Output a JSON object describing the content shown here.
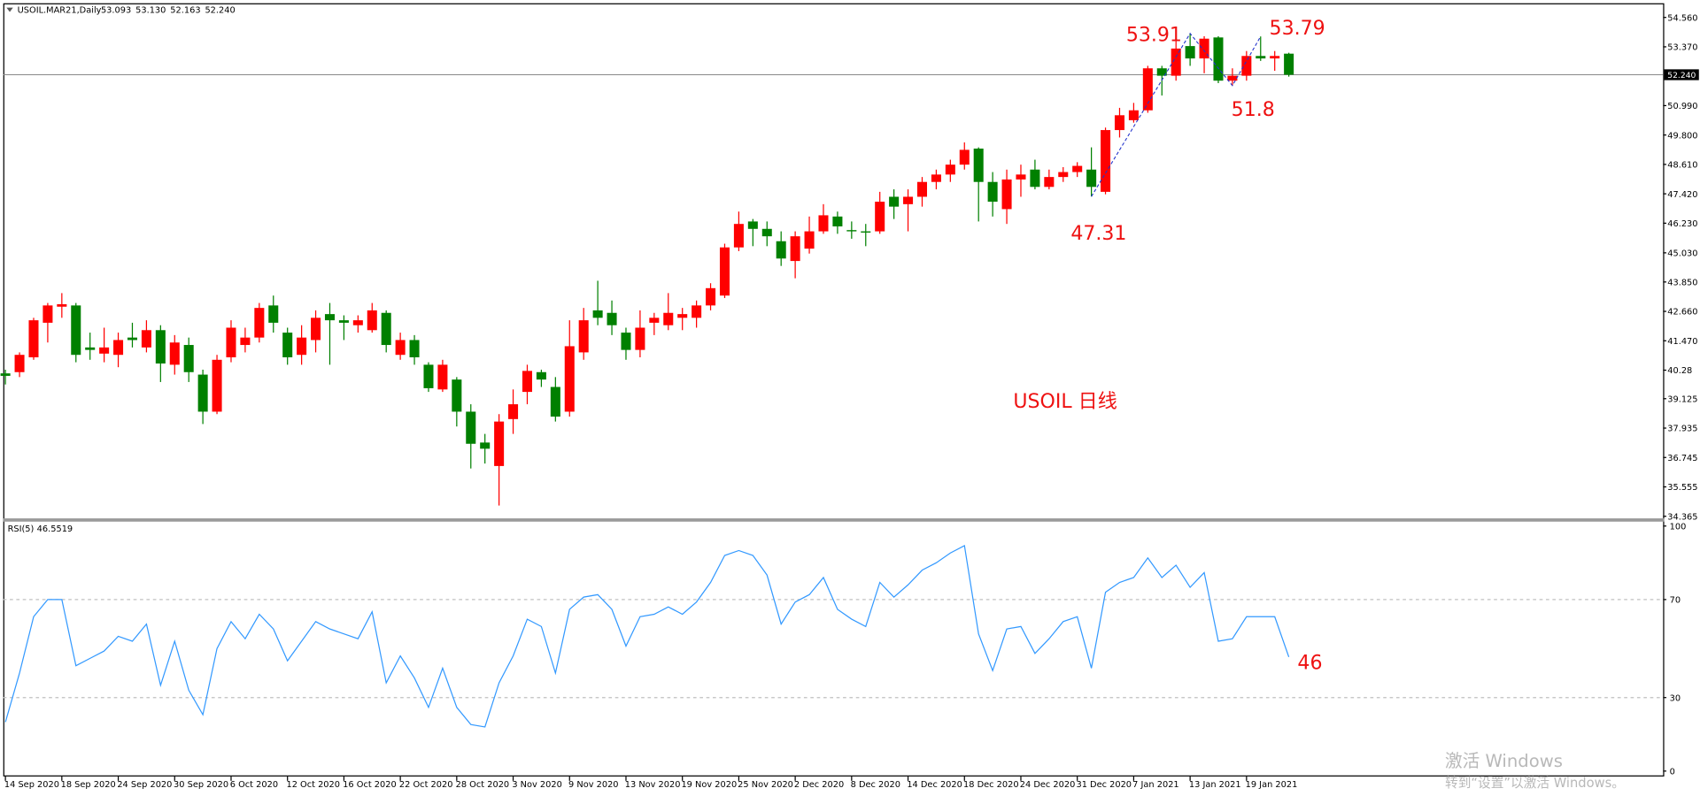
{
  "chart_data": {
    "type": "candlestick",
    "symbol": "USOIL.MAR21,Daily",
    "ohlc_labels": [
      "53.093",
      "53.130",
      "52.163",
      "52.240"
    ],
    "categories": [
      "14 Sep 2020",
      null,
      null,
      null,
      "18 Sep 2020",
      null,
      null,
      null,
      "24 Sep 2020",
      null,
      null,
      null,
      "30 Sep 2020",
      null,
      null,
      null,
      "6 Oct 2020",
      null,
      null,
      null,
      "12 Oct 2020",
      null,
      null,
      null,
      "16 Oct 2020",
      null,
      null,
      null,
      "22 Oct 2020",
      null,
      null,
      null,
      "28 Oct 2020",
      null,
      null,
      null,
      "3 Nov 2020",
      null,
      null,
      null,
      "9 Nov 2020",
      null,
      null,
      null,
      "13 Nov 2020",
      null,
      null,
      null,
      "19 Nov 2020",
      null,
      null,
      null,
      "25 Nov 2020",
      null,
      null,
      null,
      "2 Dec 2020",
      null,
      null,
      null,
      "8 Dec 2020",
      null,
      null,
      null,
      "14 Dec 2020",
      null,
      null,
      null,
      "18 Dec 2020",
      null,
      null,
      null,
      "24 Dec 2020",
      null,
      null,
      null,
      "31 Dec 2020",
      null,
      null,
      null,
      "7 Jan 2021",
      null,
      null,
      null,
      "13 Jan 2021",
      null,
      null,
      null,
      "19 Jan 2021",
      null,
      null,
      null
    ],
    "open": [
      40.15,
      40.2,
      40.8,
      42.2,
      42.85,
      42.9,
      41.2,
      40.95,
      40.9,
      41.6,
      41.2,
      41.9,
      40.5,
      41.3,
      40.1,
      38.6,
      40.8,
      41.3,
      41.6,
      42.9,
      41.8,
      40.9,
      41.5,
      42.55,
      42.3,
      42.1,
      41.9,
      42.6,
      40.9,
      41.5,
      40.5,
      39.5,
      39.9,
      38.6,
      37.35,
      36.4,
      38.3,
      39.4,
      40.2,
      39.6,
      38.6,
      41.0,
      42.7,
      42.6,
      41.8,
      41.1,
      42.2,
      42.1,
      42.4,
      42.4,
      42.9,
      43.3,
      45.25,
      46.3,
      46.0,
      45.5,
      44.7,
      45.2,
      45.9,
      46.5,
      45.95,
      45.9,
      45.9,
      47.3,
      47.0,
      47.3,
      47.9,
      48.2,
      48.6,
      49.25,
      47.9,
      46.8,
      48.0,
      48.4,
      47.7,
      48.1,
      48.3,
      48.4,
      47.5,
      50.0,
      50.4,
      50.8,
      52.5,
      52.2,
      53.4,
      52.9,
      53.75,
      52.0,
      52.2,
      53.0,
      52.9,
      53.093
    ],
    "high": [
      40.3,
      41.0,
      42.4,
      43.0,
      43.4,
      43.0,
      41.8,
      42.0,
      41.8,
      42.2,
      42.3,
      42.1,
      41.7,
      41.6,
      40.3,
      40.9,
      42.3,
      42.0,
      43.0,
      43.3,
      42.0,
      42.1,
      42.7,
      43.0,
      42.5,
      42.5,
      43.0,
      42.7,
      41.8,
      41.7,
      40.6,
      40.7,
      40.0,
      38.9,
      37.7,
      38.5,
      39.5,
      40.5,
      40.3,
      40.0,
      42.3,
      42.8,
      43.9,
      43.1,
      42.0,
      42.7,
      42.6,
      43.4,
      42.8,
      43.1,
      43.8,
      45.4,
      46.7,
      46.4,
      46.3,
      45.9,
      45.9,
      46.5,
      47.0,
      46.7,
      46.3,
      46.2,
      47.5,
      47.6,
      47.6,
      48.1,
      48.4,
      48.8,
      49.5,
      49.3,
      48.3,
      48.4,
      48.6,
      48.8,
      48.4,
      48.5,
      48.7,
      49.3,
      50.1,
      50.9,
      51.1,
      52.6,
      52.6,
      53.7,
      53.91,
      53.8,
      53.8,
      52.5,
      53.2,
      53.79,
      53.2,
      53.13
    ],
    "low": [
      39.7,
      40.0,
      40.7,
      41.4,
      42.4,
      40.6,
      40.7,
      40.6,
      40.4,
      41.2,
      41.0,
      39.8,
      40.1,
      39.8,
      38.1,
      38.5,
      40.6,
      41.0,
      41.4,
      41.8,
      40.5,
      40.5,
      41.0,
      40.5,
      41.5,
      41.8,
      41.8,
      41.0,
      40.7,
      40.5,
      39.4,
      39.4,
      38.0,
      36.3,
      36.5,
      34.8,
      37.7,
      38.9,
      39.6,
      38.2,
      38.4,
      40.7,
      42.1,
      41.7,
      40.7,
      40.8,
      41.7,
      41.9,
      41.9,
      42.0,
      42.7,
      43.2,
      45.1,
      45.3,
      45.3,
      44.5,
      44.0,
      45.0,
      45.8,
      45.8,
      45.6,
      45.3,
      45.8,
      46.4,
      45.9,
      46.9,
      47.6,
      47.9,
      48.4,
      46.3,
      46.5,
      46.2,
      47.3,
      47.6,
      47.6,
      47.9,
      48.1,
      47.31,
      47.4,
      49.7,
      50.3,
      50.7,
      51.4,
      52.0,
      52.6,
      52.3,
      51.9,
      51.8,
      52.0,
      52.8,
      52.4,
      52.163
    ],
    "close": [
      40.05,
      40.9,
      42.3,
      42.9,
      42.95,
      40.9,
      41.1,
      41.2,
      41.5,
      41.5,
      41.9,
      40.55,
      41.4,
      40.2,
      38.6,
      40.7,
      42.0,
      41.6,
      42.8,
      42.2,
      40.8,
      41.6,
      42.4,
      42.3,
      42.2,
      42.3,
      42.7,
      41.3,
      41.5,
      40.8,
      39.55,
      40.5,
      38.6,
      37.3,
      37.1,
      38.2,
      38.9,
      40.25,
      39.9,
      38.4,
      41.25,
      42.3,
      42.4,
      42.1,
      41.1,
      42.0,
      42.4,
      42.6,
      42.55,
      42.9,
      43.6,
      45.25,
      46.2,
      46.0,
      45.7,
      44.8,
      45.7,
      45.9,
      46.55,
      46.1,
      45.9,
      45.85,
      47.1,
      46.9,
      47.3,
      47.9,
      48.2,
      48.6,
      49.2,
      47.9,
      47.1,
      48.0,
      48.2,
      47.7,
      48.1,
      48.3,
      48.55,
      47.7,
      50.0,
      50.6,
      50.8,
      52.5,
      52.2,
      53.3,
      52.9,
      53.7,
      52.0,
      52.2,
      53.0,
      52.9,
      53.0,
      52.24
    ],
    "up_color": "#ff0000",
    "down_color": "#008000",
    "ylim": [
      34.28,
      55.09
    ],
    "yticks": [
      {
        "value": 54.56,
        "label": "54.560"
      },
      {
        "value": 53.37,
        "label": "53.370"
      },
      {
        "value": 50.99,
        "label": "50.990"
      },
      {
        "value": 49.8,
        "label": "49.800"
      },
      {
        "value": 48.61,
        "label": "48.610"
      },
      {
        "value": 47.42,
        "label": "47.420"
      },
      {
        "value": 46.23,
        "label": "46.230"
      },
      {
        "value": 45.03,
        "label": "45.030"
      },
      {
        "value": 43.85,
        "label": "43.850"
      },
      {
        "value": 42.66,
        "label": "42.660"
      },
      {
        "value": 41.47,
        "label": "41.470"
      },
      40.28,
      39.125,
      37.935,
      36.745,
      35.555,
      34.365
    ],
    "price_line": {
      "value": 52.24,
      "label": "52.240"
    },
    "annotations": [
      "53.91",
      "53.79",
      "51.8",
      "47.31",
      "USOIL 日线",
      "46"
    ],
    "annotation_color": "#ee1111",
    "indicator": {
      "type": "line",
      "name": "RSI(5)",
      "color": "#3399ff",
      "values": [
        20,
        40,
        63,
        70,
        70,
        43,
        46,
        49,
        55,
        53,
        60,
        35,
        53,
        33,
        23,
        50,
        61,
        54,
        64,
        58,
        45,
        53,
        61,
        58,
        56,
        54,
        65,
        36,
        47,
        38,
        26,
        42,
        26,
        19,
        18,
        36,
        47,
        62,
        59,
        40,
        66,
        71,
        72,
        66,
        51,
        63,
        64,
        67,
        64,
        69,
        77,
        88,
        90,
        88,
        80,
        60,
        69,
        72,
        79,
        66,
        62,
        59,
        77,
        71,
        76,
        82,
        85,
        89,
        92,
        56,
        41,
        58,
        59,
        48,
        54,
        61,
        63,
        42,
        73,
        77,
        79,
        87,
        79,
        84,
        75,
        81,
        53,
        54,
        63,
        63,
        63,
        46.5519
      ],
      "ylim": [
        -2.2,
        101.8
      ],
      "yticks": [
        100,
        70,
        30,
        0
      ],
      "levels": [
        70,
        30
      ]
    },
    "watermark": [
      "激活 Windows",
      "转到“设置”以激活 Windows。"
    ]
  }
}
